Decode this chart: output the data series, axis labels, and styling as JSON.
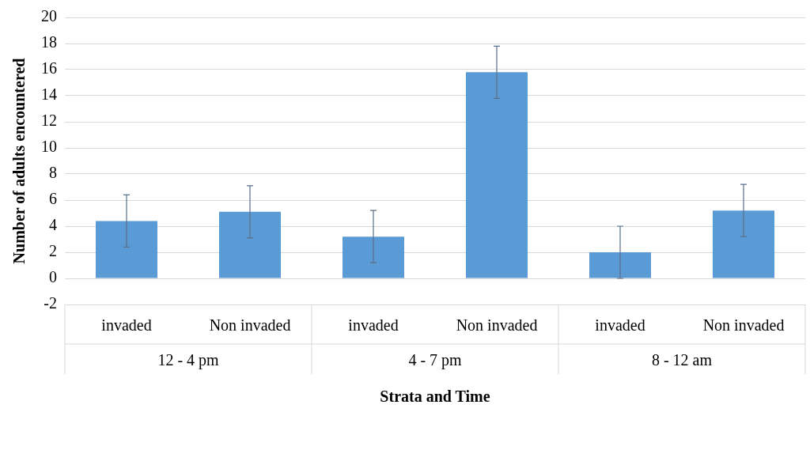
{
  "chart_data": {
    "type": "bar",
    "xlabel": "Strata and Time",
    "ylabel": "Number of adults encountered",
    "categories": [
      "invaded",
      "Non invaded",
      "invaded",
      "Non invaded",
      "invaded",
      "Non invaded"
    ],
    "values": [
      4.4,
      5.1,
      3.2,
      15.8,
      2.0,
      5.2
    ],
    "errors": [
      2.0,
      2.0,
      2.0,
      2.0,
      2.0,
      2.0
    ],
    "color": "#5b9bd5",
    "ylim": [
      -2,
      20
    ],
    "yticks": [
      -2,
      0,
      2,
      4,
      6,
      8,
      10,
      12,
      14,
      16,
      18,
      20
    ],
    "grid": "y",
    "annotations": [
      "12 - 4 pm",
      "4 - 7 pm",
      "8 - 12 am"
    ]
  }
}
